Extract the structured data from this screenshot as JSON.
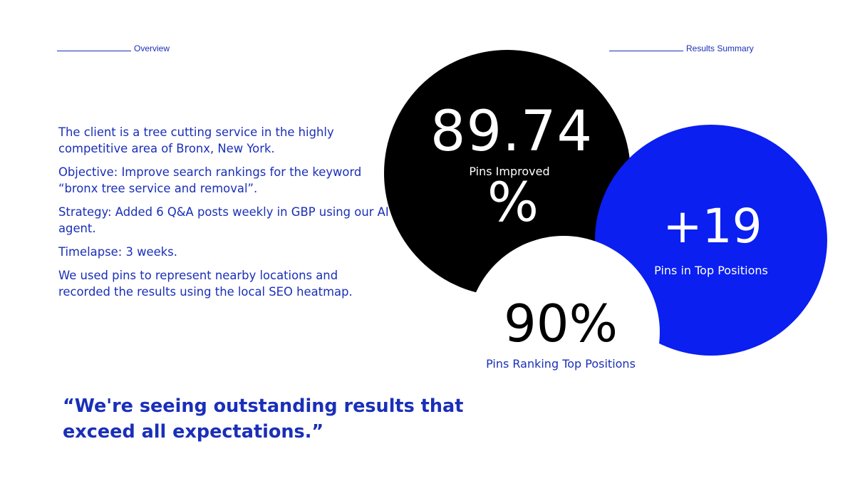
{
  "header": {
    "overview_label": "Overview",
    "results_label": "Results Summary"
  },
  "overview": {
    "paragraphs": [
      "The client is a tree cutting service in the highly competitive area of Bronx, New York.",
      "Objective: Improve search rankings for the keyword “bronx tree service and removal”.",
      "Strategy: Added 6 Q&A posts weekly in GBP using our AI agent.",
      "Timelapse: 3 weeks.",
      "We used pins to represent nearby locations and recorded the results using the local SEO heatmap."
    ]
  },
  "quote": "“We're seeing outstanding results that exceed all expectations.”",
  "stats": [
    {
      "value_main": "89.74",
      "value_suffix": "%",
      "label": "Pins Improved"
    },
    {
      "value": "+19",
      "label": "Pins in Top Positions"
    },
    {
      "value": "90%",
      "label": "Pins Ranking Top Positions"
    }
  ],
  "colors": {
    "accent_blue": "#1a2fb8",
    "circle_blue": "#0a1ff0",
    "circle_black": "#000000",
    "background": "#ffffff"
  }
}
